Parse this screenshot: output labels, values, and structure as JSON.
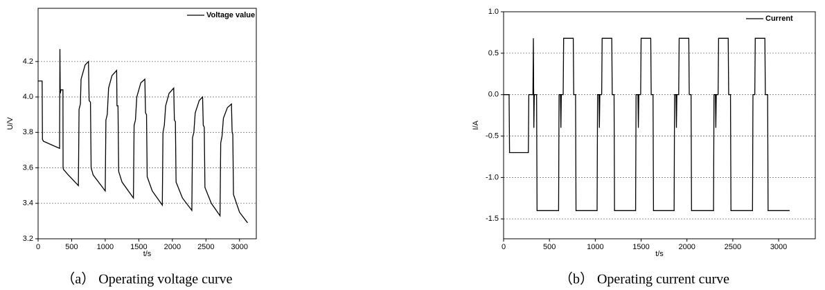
{
  "chart_data": [
    {
      "type": "line",
      "title": "（a） Operating voltage curve",
      "xlabel": "t/s",
      "ylabel": "U/V",
      "xlim": [
        0,
        3250
      ],
      "ylim": [
        3.2,
        4.5
      ],
      "xticks": [
        0,
        500,
        1000,
        1500,
        2000,
        2500,
        3000
      ],
      "yticks": [
        3.2,
        3.4,
        3.6,
        3.8,
        {
          "value": 4,
          "label": "4.0"
        },
        4.2
      ],
      "grid": true,
      "legend": "upper right",
      "x": [
        0,
        60,
        65,
        80,
        320,
        325,
        330,
        340,
        370,
        372,
        380,
        450,
        600,
        610,
        630,
        640,
        700,
        750,
        760,
        780,
        790,
        820,
        1000,
        1010,
        1030,
        1050,
        1100,
        1170,
        1175,
        1190,
        1200,
        1250,
        1420,
        1430,
        1450,
        1470,
        1530,
        1590,
        1600,
        1615,
        1625,
        1700,
        1850,
        1860,
        1880,
        1900,
        1950,
        2020,
        2030,
        2045,
        2055,
        2150,
        2290,
        2300,
        2320,
        2340,
        2400,
        2450,
        2460,
        2475,
        2485,
        2580,
        2710,
        2720,
        2740,
        2760,
        2820,
        2880,
        2890,
        2900,
        2910,
        3000,
        3120
      ],
      "series": [
        {
          "name": "Voltage value",
          "color": "#000000",
          "values": [
            4.09,
            4.09,
            3.76,
            3.75,
            3.71,
            4.27,
            4.02,
            4.04,
            4.04,
            3.6,
            3.59,
            3.56,
            3.5,
            3.93,
            3.96,
            4.1,
            4.18,
            4.2,
            3.98,
            3.97,
            3.6,
            3.56,
            3.47,
            3.87,
            3.9,
            4.05,
            4.12,
            4.15,
            3.95,
            3.95,
            3.58,
            3.52,
            3.43,
            3.84,
            3.87,
            4.0,
            4.08,
            4.1,
            3.91,
            3.9,
            3.55,
            3.47,
            3.39,
            3.8,
            3.84,
            3.95,
            4.02,
            4.05,
            3.87,
            3.86,
            3.52,
            3.43,
            3.36,
            3.77,
            3.8,
            3.91,
            3.98,
            4.0,
            3.84,
            3.83,
            3.49,
            3.4,
            3.33,
            3.74,
            3.78,
            3.88,
            3.94,
            3.96,
            3.8,
            3.79,
            3.45,
            3.35,
            3.29
          ]
        }
      ]
    },
    {
      "type": "line",
      "title": "（b） Operating current curve",
      "xlabel": "t/s",
      "ylabel": "I/A",
      "xlim": [
        0,
        3400
      ],
      "ylim": [
        -1.74,
        1.0
      ],
      "xticks": [
        0,
        500,
        1000,
        1500,
        2000,
        2500,
        3000
      ],
      "yticks": [
        -1.5,
        {
          "value": -1,
          "label": "-1.0"
        },
        -0.5,
        {
          "value": 0,
          "label": "0.0"
        },
        0.5,
        {
          "value": 1,
          "label": "1.0"
        }
      ],
      "grid": true,
      "legend": "upper right",
      "x": [
        0,
        60,
        65,
        270,
        275,
        320,
        325,
        330,
        335,
        360,
        365,
        600,
        605,
        620,
        625,
        630,
        650,
        655,
        760,
        765,
        785,
        790,
        1020,
        1025,
        1040,
        1045,
        1050,
        1070,
        1075,
        1180,
        1185,
        1205,
        1210,
        1440,
        1445,
        1465,
        1470,
        1475,
        1495,
        1500,
        1605,
        1610,
        1630,
        1635,
        1860,
        1865,
        1880,
        1885,
        1890,
        1910,
        1915,
        2020,
        2025,
        2045,
        2050,
        2290,
        2295,
        2310,
        2315,
        2320,
        2340,
        2345,
        2450,
        2455,
        2475,
        2480,
        2715,
        2720,
        2740,
        2745,
        2850,
        2855,
        2880,
        2885,
        3120
      ],
      "series": [
        {
          "name": "Current",
          "color": "#000000",
          "values": [
            0,
            0,
            -0.7,
            -0.7,
            0,
            0,
            0.68,
            -0.4,
            0,
            0,
            -1.4,
            -1.4,
            0,
            0,
            -0.4,
            0,
            0,
            0.68,
            0.68,
            0,
            0,
            -1.4,
            -1.4,
            0,
            0,
            -0.4,
            0,
            0,
            0.68,
            0.68,
            0,
            0,
            -1.4,
            -1.4,
            0,
            0,
            -0.4,
            0,
            0,
            0.68,
            0.68,
            0,
            0,
            -1.4,
            -1.4,
            0,
            0,
            -0.4,
            0,
            0,
            0.68,
            0.68,
            0,
            0,
            -1.4,
            -1.4,
            0,
            0,
            -0.4,
            0,
            0,
            0.68,
            0.68,
            0,
            0,
            -1.4,
            -1.4,
            0,
            0,
            0.68,
            0.68,
            0,
            0,
            -1.4,
            -1.4
          ]
        }
      ]
    }
  ]
}
